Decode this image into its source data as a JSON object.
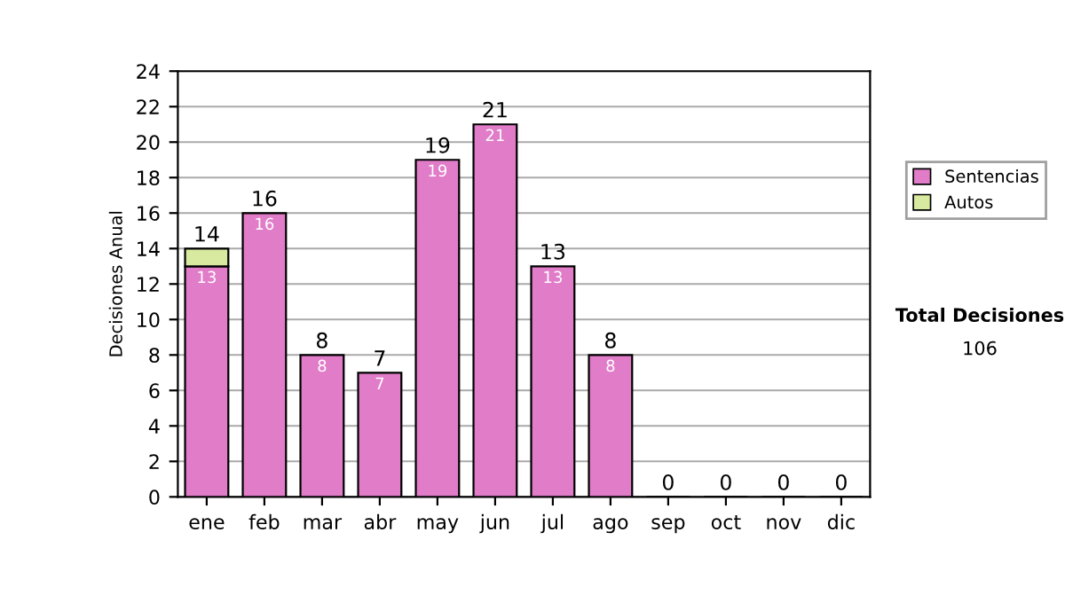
{
  "chart_data": {
    "type": "bar",
    "stacked": true,
    "ylabel": "Decisiones Anual",
    "categories": [
      "ene",
      "feb",
      "mar",
      "abr",
      "may",
      "jun",
      "jul",
      "ago",
      "sep",
      "oct",
      "nov",
      "dic"
    ],
    "series": [
      {
        "name": "Sentencias",
        "color": "#e07cc8",
        "values": [
          13,
          16,
          8,
          7,
          19,
          21,
          13,
          8,
          0,
          0,
          0,
          0
        ],
        "value_labels": [
          "13",
          "16",
          "8",
          "7",
          "19",
          "21",
          "13",
          "8",
          null,
          null,
          null,
          null
        ]
      },
      {
        "name": "Autos",
        "color": "#d8eaa0",
        "values": [
          1,
          null,
          null,
          null,
          null,
          null,
          null,
          null,
          null,
          null,
          null,
          null
        ]
      }
    ],
    "totals": [
      "14",
      "16",
      "8",
      "7",
      "19",
      "21",
      "13",
      "8",
      "0",
      "0",
      "0",
      "0"
    ],
    "ylim": [
      0,
      24
    ],
    "yticks": [
      0,
      2,
      4,
      6,
      8,
      10,
      12,
      14,
      16,
      18,
      20,
      22,
      24
    ],
    "grid": "y",
    "legend": "right",
    "annotations": [
      "Total Decisiones",
      "106"
    ]
  }
}
